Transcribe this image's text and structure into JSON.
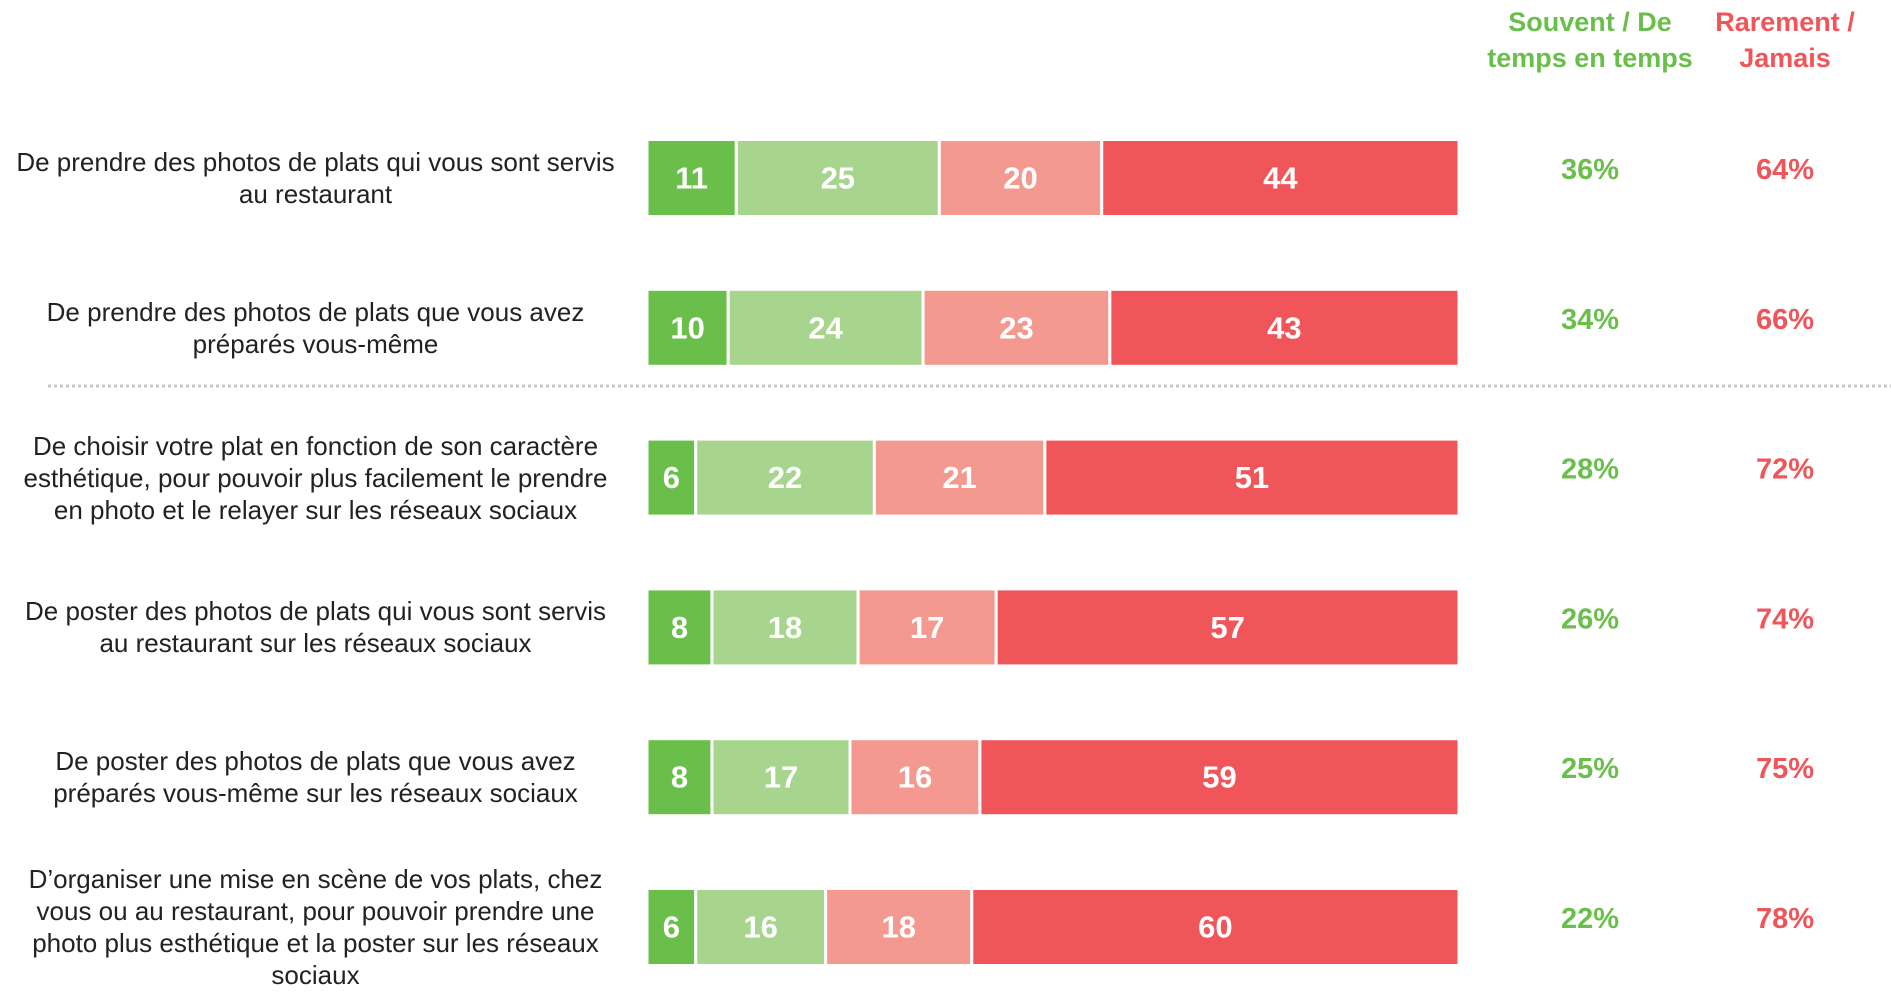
{
  "chart_data": {
    "type": "bar",
    "orientation": "horizontal",
    "stacked": true,
    "categories": [
      "De prendre des photos de plats qui vous sont servis au restaurant",
      "De prendre des photos de plats que vous avez préparés vous-même",
      "De choisir votre plat en fonction de son caractère esthétique, pour pouvoir plus facilement le prendre en photo et le relayer sur les réseaux sociaux",
      "De poster des photos de plats qui vous sont servis au restaurant sur les réseaux sociaux",
      "De poster des photos de plats que vous avez préparés vous-même sur les réseaux sociaux",
      "D’organiser une mise en scène de vos plats, chez vous ou au restaurant, pour pouvoir prendre une photo plus esthétique et la poster sur les réseaux sociaux"
    ],
    "series": [
      {
        "color": "#6abf4b",
        "values": [
          11,
          10,
          6,
          8,
          8,
          6
        ]
      },
      {
        "color": "#a8d58e",
        "values": [
          25,
          24,
          22,
          18,
          17,
          16
        ]
      },
      {
        "color": "#f4998f",
        "values": [
          20,
          23,
          21,
          17,
          16,
          18
        ]
      },
      {
        "color": "#f0555a",
        "values": [
          44,
          43,
          51,
          57,
          59,
          60
        ]
      }
    ],
    "xlim": [
      0,
      100
    ],
    "totals": [
      {
        "name": "Souvent / De temps en temps",
        "color": "#6abf4b",
        "values": [
          36,
          34,
          28,
          26,
          25,
          22
        ],
        "value_labels": [
          "36%",
          "34%",
          "28%",
          "26%",
          "25%",
          "22%"
        ]
      },
      {
        "name": "Rarement / Jamais",
        "color": "#f0555a",
        "values": [
          64,
          66,
          72,
          74,
          75,
          78
        ],
        "value_labels": [
          "64%",
          "66%",
          "72%",
          "74%",
          "75%",
          "78%"
        ]
      }
    ]
  }
}
